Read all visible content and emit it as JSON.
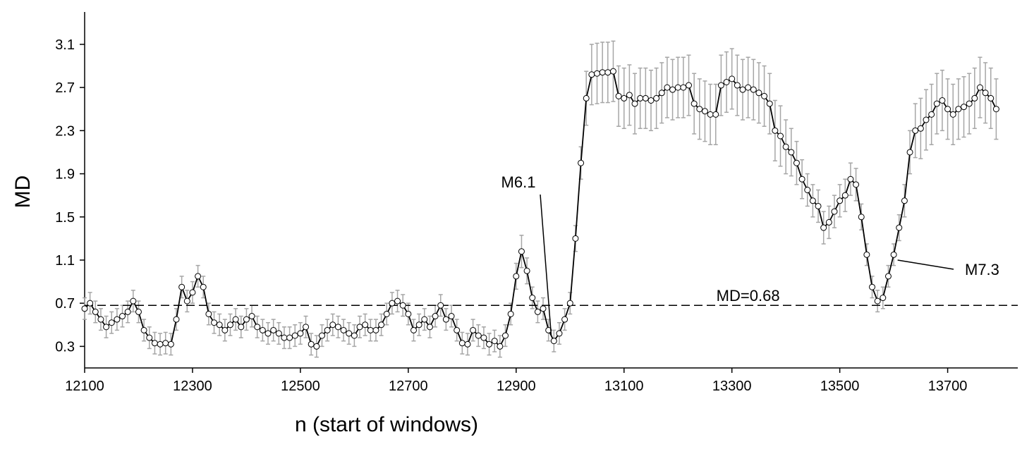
{
  "chart_data": {
    "type": "line",
    "x_label": "n (start of windows)",
    "y_label": "MD",
    "xlim": [
      12100,
      13830
    ],
    "ylim": [
      0.1,
      3.4
    ],
    "xticks": [
      12100,
      12300,
      12500,
      12700,
      12900,
      13100,
      13300,
      13500,
      13700
    ],
    "yticks": [
      0.3,
      0.7,
      1.1,
      1.5,
      1.9,
      2.3,
      2.7,
      3.1
    ],
    "reference_line": {
      "value": 0.68,
      "label": "MD=0.68"
    },
    "annotations": [
      {
        "text": "M6.1",
        "x": 12965,
        "y": 0.4
      },
      {
        "text": "M7.3",
        "x": 13602,
        "y": 1.1
      }
    ],
    "x": [
      12100,
      12110,
      12120,
      12130,
      12140,
      12150,
      12160,
      12170,
      12180,
      12190,
      12200,
      12210,
      12220,
      12230,
      12240,
      12250,
      12260,
      12270,
      12280,
      12290,
      12300,
      12310,
      12320,
      12330,
      12340,
      12350,
      12360,
      12370,
      12380,
      12390,
      12400,
      12410,
      12420,
      12430,
      12440,
      12450,
      12460,
      12470,
      12480,
      12490,
      12500,
      12510,
      12520,
      12530,
      12540,
      12550,
      12560,
      12570,
      12580,
      12590,
      12600,
      12610,
      12620,
      12630,
      12640,
      12650,
      12660,
      12670,
      12680,
      12690,
      12700,
      12710,
      12720,
      12730,
      12740,
      12750,
      12760,
      12770,
      12780,
      12790,
      12800,
      12810,
      12820,
      12830,
      12840,
      12850,
      12860,
      12870,
      12880,
      12890,
      12900,
      12910,
      12920,
      12930,
      12940,
      12950,
      12960,
      12970,
      12980,
      12990,
      13000,
      13010,
      13020,
      13030,
      13040,
      13050,
      13060,
      13070,
      13080,
      13090,
      13100,
      13110,
      13120,
      13130,
      13140,
      13150,
      13160,
      13170,
      13180,
      13190,
      13200,
      13210,
      13220,
      13230,
      13240,
      13250,
      13260,
      13270,
      13280,
      13290,
      13300,
      13310,
      13320,
      13330,
      13340,
      13350,
      13360,
      13370,
      13380,
      13390,
      13400,
      13410,
      13420,
      13430,
      13440,
      13450,
      13460,
      13470,
      13480,
      13490,
      13500,
      13510,
      13520,
      13530,
      13540,
      13550,
      13560,
      13570,
      13580,
      13590,
      13600,
      13610,
      13620,
      13630,
      13640,
      13650,
      13660,
      13670,
      13680,
      13690,
      13700,
      13710,
      13720,
      13730,
      13740,
      13750,
      13760,
      13770,
      13780,
      13790
    ],
    "series": [
      {
        "color": "#000000",
        "error_color": "#a6a6a6",
        "values": [
          0.65,
          0.7,
          0.62,
          0.55,
          0.48,
          0.52,
          0.55,
          0.58,
          0.62,
          0.72,
          0.62,
          0.45,
          0.38,
          0.33,
          0.32,
          0.33,
          0.32,
          0.55,
          0.85,
          0.72,
          0.8,
          0.95,
          0.85,
          0.6,
          0.52,
          0.5,
          0.45,
          0.5,
          0.55,
          0.48,
          0.55,
          0.58,
          0.48,
          0.45,
          0.42,
          0.45,
          0.42,
          0.38,
          0.38,
          0.4,
          0.42,
          0.48,
          0.32,
          0.3,
          0.4,
          0.45,
          0.5,
          0.48,
          0.45,
          0.42,
          0.4,
          0.48,
          0.5,
          0.45,
          0.45,
          0.5,
          0.6,
          0.7,
          0.72,
          0.68,
          0.6,
          0.45,
          0.5,
          0.55,
          0.48,
          0.58,
          0.68,
          0.55,
          0.58,
          0.45,
          0.33,
          0.32,
          0.45,
          0.4,
          0.38,
          0.32,
          0.35,
          0.3,
          0.4,
          0.6,
          0.95,
          1.18,
          1.0,
          0.75,
          0.62,
          0.65,
          0.45,
          0.35,
          0.42,
          0.55,
          0.7,
          1.3,
          2.0,
          2.6,
          2.82,
          2.83,
          2.84,
          2.84,
          2.85,
          2.62,
          2.6,
          2.63,
          2.55,
          2.6,
          2.6,
          2.58,
          2.6,
          2.65,
          2.7,
          2.68,
          2.7,
          2.7,
          2.72,
          2.55,
          2.5,
          2.48,
          2.45,
          2.45,
          2.72,
          2.75,
          2.78,
          2.72,
          2.68,
          2.7,
          2.68,
          2.65,
          2.62,
          2.55,
          2.3,
          2.25,
          2.15,
          2.1,
          2.0,
          1.85,
          1.75,
          1.65,
          1.6,
          1.4,
          1.45,
          1.55,
          1.65,
          1.7,
          1.85,
          1.8,
          1.5,
          1.15,
          0.85,
          0.72,
          0.75,
          0.95,
          1.15,
          1.4,
          1.65,
          2.1,
          2.3,
          2.32,
          2.4,
          2.45,
          2.55,
          2.58,
          2.5,
          2.45,
          2.5,
          2.52,
          2.55,
          2.6,
          2.7,
          2.65,
          2.6,
          2.5
        ],
        "errors": [
          0.1,
          0.1,
          0.1,
          0.1,
          0.1,
          0.1,
          0.1,
          0.1,
          0.1,
          0.1,
          0.1,
          0.1,
          0.1,
          0.1,
          0.1,
          0.1,
          0.1,
          0.1,
          0.1,
          0.1,
          0.1,
          0.1,
          0.1,
          0.1,
          0.1,
          0.1,
          0.1,
          0.1,
          0.1,
          0.1,
          0.1,
          0.1,
          0.1,
          0.1,
          0.1,
          0.1,
          0.1,
          0.1,
          0.1,
          0.1,
          0.1,
          0.1,
          0.1,
          0.1,
          0.1,
          0.1,
          0.1,
          0.1,
          0.1,
          0.1,
          0.1,
          0.1,
          0.1,
          0.1,
          0.1,
          0.1,
          0.1,
          0.1,
          0.1,
          0.1,
          0.1,
          0.1,
          0.1,
          0.1,
          0.1,
          0.1,
          0.1,
          0.1,
          0.1,
          0.1,
          0.1,
          0.1,
          0.1,
          0.1,
          0.1,
          0.1,
          0.1,
          0.1,
          0.1,
          0.1,
          0.12,
          0.15,
          0.12,
          0.1,
          0.1,
          0.1,
          0.1,
          0.1,
          0.1,
          0.1,
          0.1,
          0.12,
          0.15,
          0.25,
          0.28,
          0.28,
          0.28,
          0.28,
          0.28,
          0.28,
          0.28,
          0.28,
          0.28,
          0.28,
          0.28,
          0.28,
          0.28,
          0.28,
          0.28,
          0.28,
          0.28,
          0.28,
          0.28,
          0.28,
          0.28,
          0.28,
          0.28,
          0.28,
          0.28,
          0.28,
          0.28,
          0.28,
          0.28,
          0.28,
          0.28,
          0.28,
          0.28,
          0.28,
          0.28,
          0.28,
          0.25,
          0.22,
          0.2,
          0.18,
          0.15,
          0.15,
          0.15,
          0.15,
          0.15,
          0.15,
          0.15,
          0.15,
          0.15,
          0.15,
          0.12,
          0.1,
          0.1,
          0.1,
          0.1,
          0.1,
          0.1,
          0.12,
          0.15,
          0.2,
          0.25,
          0.28,
          0.28,
          0.28,
          0.28,
          0.28,
          0.28,
          0.28,
          0.28,
          0.28,
          0.28,
          0.28,
          0.28,
          0.28,
          0.28,
          0.28
        ]
      }
    ]
  }
}
